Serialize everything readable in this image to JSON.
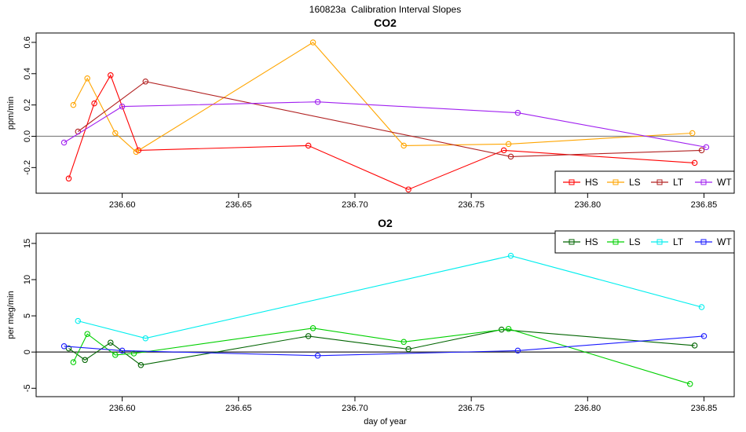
{
  "figure": {
    "main_title": "160823a  Calibration Interval Slopes",
    "x_axis_label": "day of year"
  },
  "chart_data": [
    {
      "id": "co2",
      "type": "line",
      "title": "CO2",
      "ylabel": "ppm/min",
      "xlabel": "",
      "xlim": [
        236.563,
        236.863
      ],
      "ylim": [
        -0.364,
        0.66
      ],
      "x_ticks": [
        "236.60",
        "236.65",
        "236.70",
        "236.75",
        "236.80",
        "236.85"
      ],
      "y_ticks": [
        "-0.2",
        "0.0",
        "0.2",
        "0.4",
        "0.6"
      ],
      "grid": false,
      "zero_line_color": "#848484",
      "legend_position": "bottom-right",
      "legend_items": [
        "HS",
        "LS",
        "LT",
        "WT"
      ],
      "series": [
        {
          "name": "HS",
          "color": "#ff0000",
          "points": [
            [
              236.577,
              -0.27
            ],
            [
              236.588,
              0.21
            ],
            [
              236.595,
              0.39
            ],
            [
              236.607,
              -0.09
            ],
            [
              236.68,
              -0.06
            ],
            [
              236.723,
              -0.34
            ],
            [
              236.764,
              -0.09
            ],
            [
              236.846,
              -0.17
            ]
          ]
        },
        {
          "name": "LS",
          "color": "#ffa500",
          "points": [
            [
              236.579,
              0.2
            ],
            [
              236.585,
              0.37
            ],
            [
              236.597,
              0.02
            ],
            [
              236.606,
              -0.1
            ],
            [
              236.682,
              0.6
            ],
            [
              236.721,
              -0.06
            ],
            [
              236.766,
              -0.05
            ],
            [
              236.845,
              0.02
            ]
          ]
        },
        {
          "name": "LT",
          "color": "#b22222",
          "points": [
            [
              236.581,
              0.03
            ],
            [
              236.61,
              0.35
            ],
            [
              236.767,
              -0.13
            ],
            [
              236.849,
              -0.09
            ]
          ]
        },
        {
          "name": "WT",
          "color": "#a020f0",
          "points": [
            [
              236.575,
              -0.04
            ],
            [
              236.6,
              0.19
            ],
            [
              236.684,
              0.22
            ],
            [
              236.77,
              0.15
            ],
            [
              236.851,
              -0.07
            ]
          ]
        }
      ]
    },
    {
      "id": "o2",
      "type": "line",
      "title": "O2",
      "ylabel": "per meg/min",
      "xlabel": "day of year",
      "xlim": [
        236.563,
        236.863
      ],
      "ylim": [
        -6.16,
        16.4
      ],
      "x_ticks": [
        "236.60",
        "236.65",
        "236.70",
        "236.75",
        "236.80",
        "236.85"
      ],
      "y_ticks": [
        "-5",
        "0",
        "5",
        "10",
        "15"
      ],
      "grid": false,
      "zero_line_color": "#3a3a3a",
      "legend_position": "top-right",
      "legend_items": [
        "HS",
        "LS",
        "LT",
        "WT"
      ],
      "series": [
        {
          "name": "HS",
          "color": "#006400",
          "points": [
            [
              236.577,
              0.5
            ],
            [
              236.584,
              -1.1
            ],
            [
              236.595,
              1.3
            ],
            [
              236.608,
              -1.8
            ],
            [
              236.68,
              2.2
            ],
            [
              236.723,
              0.4
            ],
            [
              236.763,
              3.1
            ],
            [
              236.846,
              0.9
            ]
          ]
        },
        {
          "name": "LS",
          "color": "#00d000",
          "points": [
            [
              236.579,
              -1.4
            ],
            [
              236.585,
              2.5
            ],
            [
              236.597,
              -0.4
            ],
            [
              236.605,
              -0.2
            ],
            [
              236.682,
              3.3
            ],
            [
              236.721,
              1.4
            ],
            [
              236.766,
              3.2
            ],
            [
              236.844,
              -4.4
            ]
          ]
        },
        {
          "name": "LT",
          "color": "#00eeee",
          "points": [
            [
              236.581,
              4.3
            ],
            [
              236.61,
              1.9
            ],
            [
              236.767,
              13.3
            ],
            [
              236.849,
              6.2
            ]
          ]
        },
        {
          "name": "WT",
          "color": "#1a1aff",
          "points": [
            [
              236.575,
              0.8
            ],
            [
              236.6,
              0.2
            ],
            [
              236.684,
              -0.5
            ],
            [
              236.77,
              0.2
            ],
            [
              236.85,
              2.2
            ]
          ]
        }
      ]
    }
  ]
}
